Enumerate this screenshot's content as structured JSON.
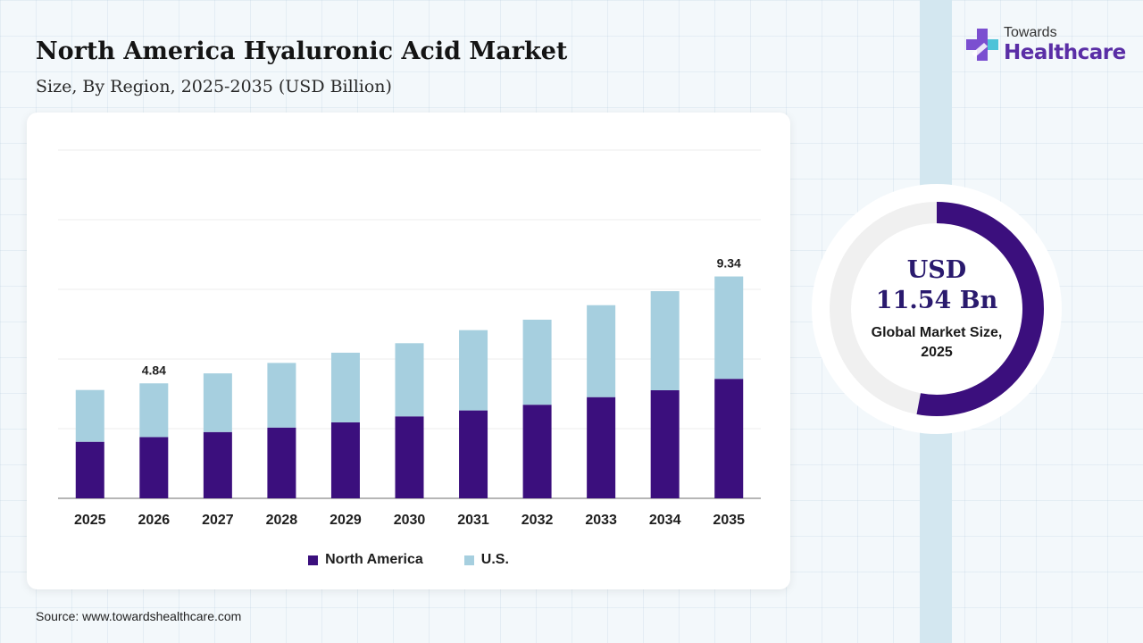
{
  "header": {
    "title": "North America Hyaluronic Acid Market",
    "subtitle": "Size, By Region, 2025-2035 (USD Billion)"
  },
  "logo": {
    "top": "Towards",
    "main": "Healthcare"
  },
  "chart_data": {
    "type": "bar",
    "stacked": true,
    "categories": [
      "2025",
      "2026",
      "2027",
      "2028",
      "2029",
      "2030",
      "2031",
      "2032",
      "2033",
      "2034",
      "2035"
    ],
    "series": [
      {
        "name": "North America",
        "color": "#3b0f7d",
        "values": [
          2.38,
          2.58,
          2.79,
          2.98,
          3.2,
          3.45,
          3.7,
          3.94,
          4.26,
          4.55,
          5.03
        ]
      },
      {
        "name": "U.S.",
        "color": "#a6cfdf",
        "values": [
          2.18,
          2.26,
          2.47,
          2.72,
          2.93,
          3.08,
          3.38,
          3.58,
          3.87,
          4.17,
          4.31
        ]
      }
    ],
    "data_labels": [
      {
        "category": "2026",
        "text": "4.84"
      },
      {
        "category": "2035",
        "text": "9.34"
      }
    ],
    "ylim": [
      0,
      12
    ],
    "grid": true,
    "legend": "bottom-center"
  },
  "summary": {
    "value_line1": "USD",
    "value_line2": "11.54 Bn",
    "caption": "Global Market Size, 2025",
    "fill_fraction": 0.53,
    "colors": {
      "fill": "#3b0f7d",
      "track": "#f0f0f0"
    }
  },
  "source": "Source: www.towardshealthcare.com"
}
